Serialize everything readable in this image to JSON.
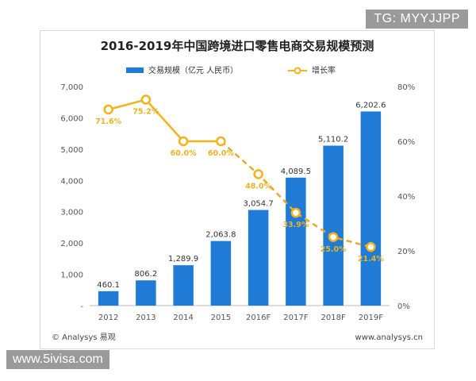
{
  "overlays": {
    "top_tag": "TG: MYYJJPP",
    "bottom_tag": "www.5ivisa.com"
  },
  "footer": {
    "copyright": "© Analysys 易观",
    "site": "www.analysys.cn"
  },
  "colors": {
    "bar": "#1f7bd6",
    "line": "#f5b21a",
    "line_dashed": "#e9a825",
    "label_pct": "#e9b425",
    "text": "#333333",
    "axis": "#555555"
  },
  "chart_data": {
    "type": "bar",
    "title": "2016-2019年中国跨境进口零售电商交易规模预测",
    "categories": [
      "2012",
      "2013",
      "2014",
      "2015",
      "2016F",
      "2017F",
      "2018F",
      "2019F"
    ],
    "series": [
      {
        "name": "交易规模（亿元 人民币）",
        "type": "bar",
        "axis": "left",
        "values": [
          460.1,
          806.2,
          1289.9,
          2063.8,
          3054.7,
          4089.5,
          5110.2,
          6202.6
        ],
        "labels": [
          "460.1",
          "806.2",
          "1,289.9",
          "2,063.8",
          "3,054.7",
          "4,089.5",
          "5,110.2",
          "6,202.6"
        ]
      },
      {
        "name": "增长率",
        "type": "line",
        "axis": "right",
        "values": [
          71.6,
          75.2,
          60.0,
          60.0,
          48.0,
          33.9,
          25.0,
          21.4
        ],
        "labels": [
          "71.6%",
          "75.2%",
          "60.0%",
          "60.0%",
          "48.0%",
          "33.9%",
          "25.0%",
          "21.4%"
        ],
        "solid_until_index": 3
      }
    ],
    "y_left": {
      "ylim": [
        0,
        7000
      ],
      "ticks": [
        0,
        1000,
        2000,
        3000,
        4000,
        5000,
        6000,
        7000
      ],
      "tick_labels": [
        "-",
        "1,000",
        "2,000",
        "3,000",
        "4,000",
        "5,000",
        "6,000",
        "7,000"
      ]
    },
    "y_right": {
      "ylim": [
        0,
        80
      ],
      "ticks": [
        0,
        20,
        40,
        60,
        80
      ],
      "tick_labels": [
        "0%",
        "20%",
        "40%",
        "60%",
        "80%"
      ]
    },
    "legend": "top"
  }
}
